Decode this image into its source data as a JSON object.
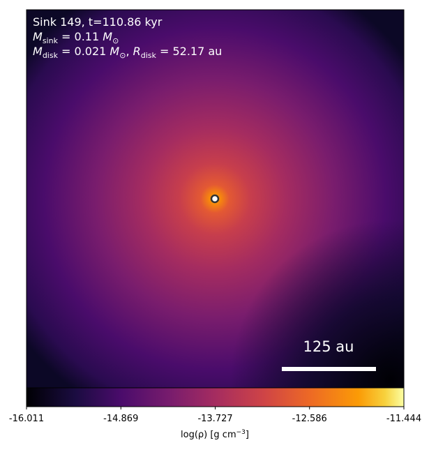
{
  "chart_data": {
    "type": "image",
    "title": "Sink 149, t=110.86 kyr",
    "mass_sink": {
      "symbol": "M",
      "subscript": "sink",
      "value": " = 0.11 ",
      "unit": "M",
      "unit_subscript": "⊙"
    },
    "disk": {
      "symbol": "M",
      "subscript": "disk",
      "value": " = 0.021 ",
      "unit": "M",
      "unit_subscript": "⊙",
      "separator": ", ",
      "symbol2": "R",
      "subscript2": "disk",
      "value2": " = 52.17 au"
    },
    "scale_bar_label": "125 au",
    "colormap": "inferno",
    "colorbar": {
      "label": "log(ρ) [g cm",
      "label_superscript": "−3",
      "label_end": "]",
      "lim": [
        -16.011,
        -11.444
      ],
      "ticks": [
        -16.011,
        -14.869,
        -13.727,
        -12.586,
        -11.444
      ]
    }
  }
}
